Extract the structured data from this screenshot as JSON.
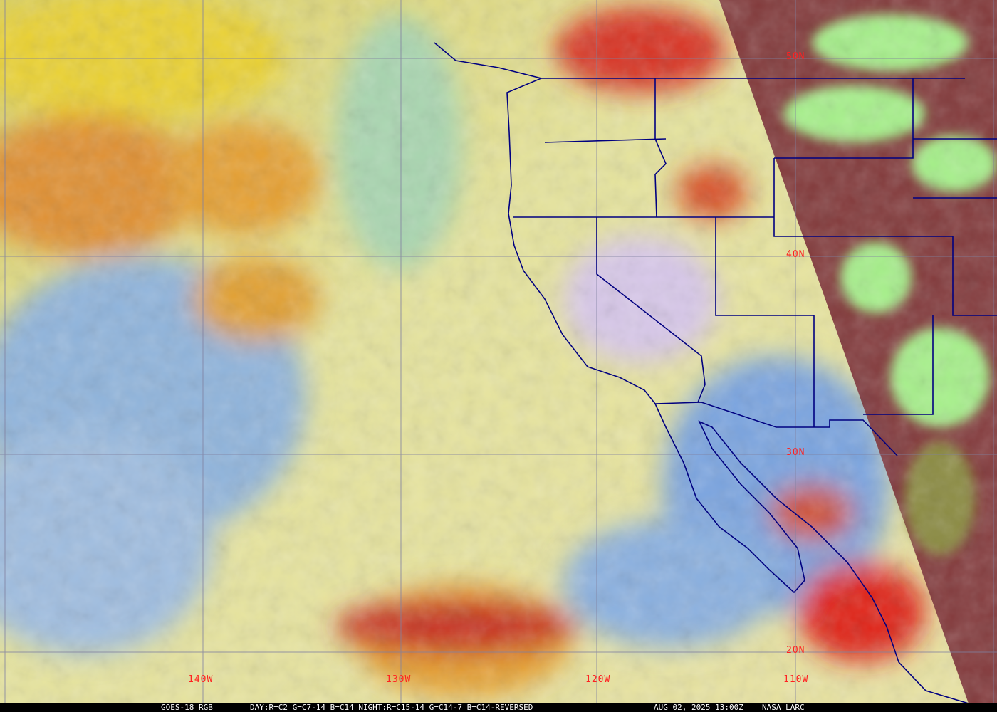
{
  "image": {
    "type": "satellite-rgb-composite",
    "colors": {
      "ocean_day": "#e8e39a",
      "ocean_clear": "#8fb4dc",
      "cloud_high": "#d8201a",
      "cloud_mid": "#e8a030",
      "night_side": "#7a2a30",
      "night_cloud": "#a6f08a",
      "coastline": "#000080",
      "grid": "#8080a0",
      "label": "#ff2020"
    }
  },
  "grid_labels": {
    "lat": [
      "50N",
      "40N",
      "30N",
      "20N"
    ],
    "lon": [
      "140W",
      "130W",
      "120W",
      "110W"
    ]
  },
  "caption": {
    "product": "GOES-18 RGB",
    "recipe": "DAY:R=C2 G=C7-14 B=C14 NIGHT:R=C15-14 G=C14-7 B=C14-REVERSED",
    "datetime": "AUG 02, 2025 13:00Z",
    "credit": "NASA LARC"
  }
}
